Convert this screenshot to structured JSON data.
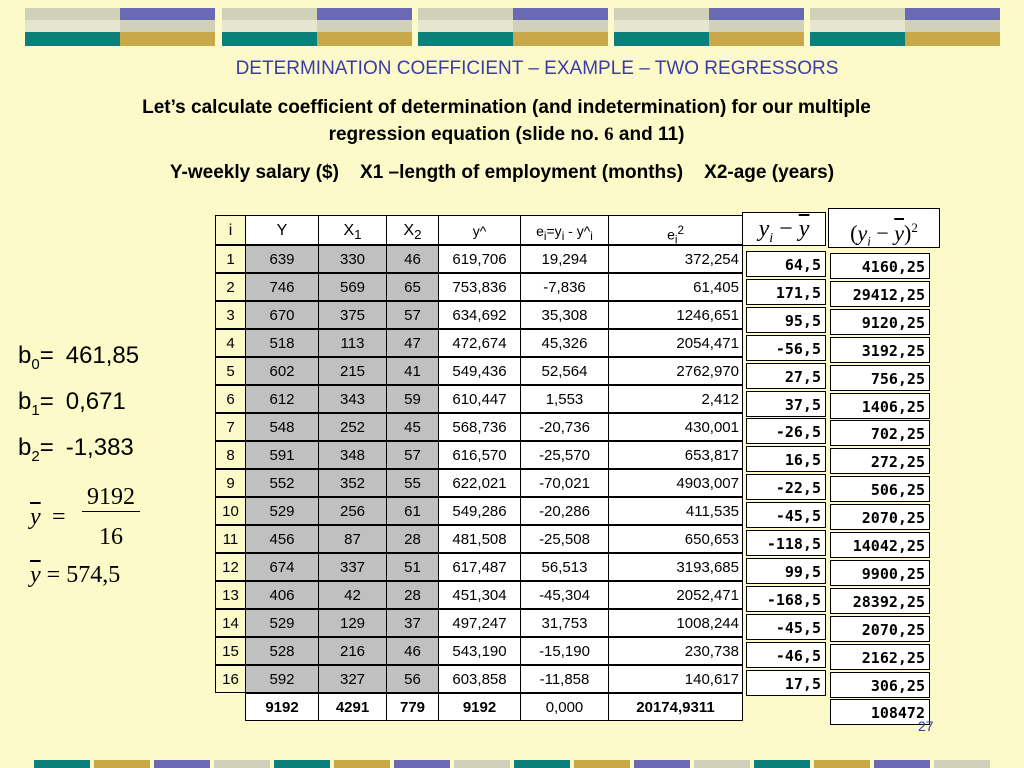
{
  "title": "DETERMINATION COEFFICIENT – EXAMPLE – TWO REGRESSORS",
  "intro": [
    "Let’s calculate coefficient of determination (and indetermination)  for our multiple",
    "regression equation (slide no. ",
    "6",
    " and 11)"
  ],
  "variables": "Y-weekly salary ($)    X1 –length of employment (months)    X2-age (years)",
  "table": {
    "header": [
      [
        "i"
      ],
      [
        "Y"
      ],
      [
        "X",
        "1"
      ],
      [
        "X",
        "2"
      ],
      [
        "y^"
      ],
      [
        "e",
        "i",
        "=y",
        "i",
        " - y^",
        "i"
      ],
      [
        "e",
        "i",
        "2"
      ]
    ],
    "rows": [
      [
        "1",
        "639",
        "330",
        "46",
        "619,706",
        "19,294",
        "372,254"
      ],
      [
        "2",
        "746",
        "569",
        "65",
        "753,836",
        "-7,836",
        "61,405"
      ],
      [
        "3",
        "670",
        "375",
        "57",
        "634,692",
        "35,308",
        "1246,651"
      ],
      [
        "4",
        "518",
        "113",
        "47",
        "472,674",
        "45,326",
        "2054,471"
      ],
      [
        "5",
        "602",
        "215",
        "41",
        "549,436",
        "52,564",
        "2762,970"
      ],
      [
        "6",
        "612",
        "343",
        "59",
        "610,447",
        "1,553",
        "2,412"
      ],
      [
        "7",
        "548",
        "252",
        "45",
        "568,736",
        "-20,736",
        "430,001"
      ],
      [
        "8",
        "591",
        "348",
        "57",
        "616,570",
        "-25,570",
        "653,817"
      ],
      [
        "9",
        "552",
        "352",
        "55",
        "622,021",
        "-70,021",
        "4903,007"
      ],
      [
        "10",
        "529",
        "256",
        "61",
        "549,286",
        "-20,286",
        "411,535"
      ],
      [
        "11",
        "456",
        "87",
        "28",
        "481,508",
        "-25,508",
        "650,653"
      ],
      [
        "12",
        "674",
        "337",
        "51",
        "617,487",
        "56,513",
        "3193,685"
      ],
      [
        "13",
        "406",
        "42",
        "28",
        "451,304",
        "-45,304",
        "2052,471"
      ],
      [
        "14",
        "529",
        "129",
        "37",
        "497,247",
        "31,753",
        "1008,244"
      ],
      [
        "15",
        "528",
        "216",
        "46",
        "543,190",
        "-15,190",
        "230,738"
      ],
      [
        "16",
        "592",
        "327",
        "56",
        "603,858",
        "-11,858",
        "140,617"
      ]
    ],
    "totals": [
      "9192",
      "4291",
      "779",
      "9192",
      "0,000",
      "20174,9311"
    ]
  },
  "deviation": {
    "header": [
      "y",
      "i",
      "−",
      "y"
    ],
    "values": [
      "64,5",
      "171,5",
      "95,5",
      "-56,5",
      "27,5",
      "37,5",
      "-26,5",
      "16,5",
      "-22,5",
      "-45,5",
      "-118,5",
      "99,5",
      "-168,5",
      "-45,5",
      "-46,5",
      "17,5"
    ]
  },
  "squared": {
    "header": [
      "(",
      "y",
      "i",
      "−",
      "y",
      ")",
      "2"
    ],
    "values": [
      "4160,25",
      "29412,25",
      "9120,25",
      "3192,25",
      "756,25",
      "1406,25",
      "702,25",
      "272,25",
      "506,25",
      "2070,25",
      "14042,25",
      "9900,25",
      "28392,25",
      "2070,25",
      "2162,25",
      "306,25"
    ],
    "total": "108472"
  },
  "coefficients": [
    {
      "name": [
        "b",
        "0",
        "="
      ],
      "value": "461,85"
    },
    {
      "name": [
        "b",
        "1",
        "="
      ],
      "value": "0,671"
    },
    {
      "name": [
        "b",
        "2",
        "="
      ],
      "value": "-1,383"
    }
  ],
  "mean": {
    "symbol": "y",
    "equals": "=",
    "numerator": "9192",
    "denominator": "16",
    "result": "574,5"
  },
  "page_number": "27"
}
